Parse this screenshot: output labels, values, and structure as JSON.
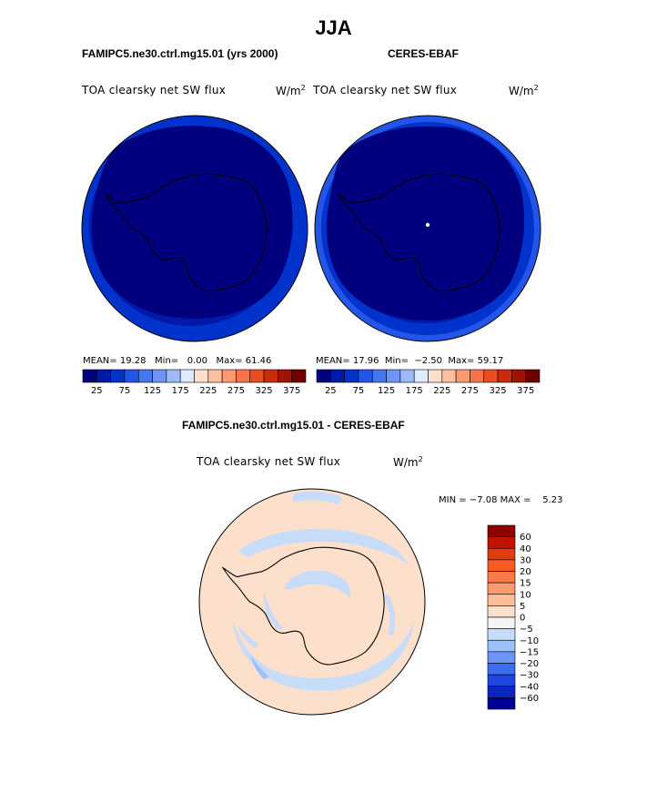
{
  "figure": {
    "season": "JJA",
    "top_left": {
      "case": "FAMIPC5.ne30.ctrl.mg15.01 (yrs 2000)",
      "variable": "TOA clearsky net SW flux",
      "units": "W/m",
      "units_exp": "2",
      "mean_label": "MEAN=",
      "mean": "19.28",
      "min_label": "Min=",
      "min": "0.00",
      "max_label": "Max=",
      "max": "61.46"
    },
    "top_right": {
      "case": "CERES-EBAF",
      "variable": "TOA clearsky net SW flux",
      "units": "W/m",
      "units_exp": "2",
      "mean_label": "MEAN=",
      "mean": "17.96",
      "min_label": "Min=",
      "min": "−2.50",
      "max_label": "Max=",
      "max": "59.17"
    },
    "bottom": {
      "case": "FAMIPC5.ne30.ctrl.mg15.01 - CERES-EBAF",
      "variable": "TOA clearsky net SW flux",
      "units": "W/m",
      "units_exp": "2",
      "min_label": "MIN =",
      "min": "−7.08",
      "max_label": "MAX =",
      "max": "5.23"
    }
  },
  "chart_data": [
    {
      "type": "heatmap",
      "projection": "south-polar-stereographic",
      "title": "FAMIPC5.ne30.ctrl.mg15.01 (yrs 2000)",
      "colorbar": {
        "orientation": "horizontal",
        "levels": [
          25,
          50,
          75,
          100,
          125,
          150,
          175,
          200,
          225,
          250,
          275,
          300,
          325,
          350,
          375
        ],
        "tick_labels": [
          "25",
          "75",
          "125",
          "175",
          "225",
          "275",
          "325",
          "375"
        ],
        "colors": [
          "#00007f",
          "#0019a8",
          "#0033cc",
          "#2255e8",
          "#4477f0",
          "#6c95f4",
          "#9cbaf8",
          "#ddeaff",
          "#fde0cc",
          "#fcc0a0",
          "#fa9a70",
          "#f57548",
          "#ea4d22",
          "#cc2a08",
          "#a01204",
          "#6e0000"
        ]
      },
      "mean": 19.28,
      "min": 0.0,
      "max": 61.46
    },
    {
      "type": "heatmap",
      "projection": "south-polar-stereographic",
      "title": "CERES-EBAF",
      "colorbar": {
        "orientation": "horizontal",
        "levels": [
          25,
          50,
          75,
          100,
          125,
          150,
          175,
          200,
          225,
          250,
          275,
          300,
          325,
          350,
          375
        ],
        "tick_labels": [
          "25",
          "75",
          "125",
          "175",
          "225",
          "275",
          "325",
          "375"
        ],
        "colors": [
          "#00007f",
          "#0019a8",
          "#0033cc",
          "#2255e8",
          "#4477f0",
          "#6c95f4",
          "#9cbaf8",
          "#ddeaff",
          "#fde0cc",
          "#fcc0a0",
          "#fa9a70",
          "#f57548",
          "#ea4d22",
          "#cc2a08",
          "#a01204",
          "#6e0000"
        ]
      },
      "mean": 17.96,
      "min": -2.5,
      "max": 59.17
    },
    {
      "type": "heatmap",
      "projection": "south-polar-stereographic",
      "title": "FAMIPC5.ne30.ctrl.mg15.01 - CERES-EBAF",
      "colorbar": {
        "orientation": "vertical",
        "tick_labels": [
          "60",
          "40",
          "30",
          "20",
          "15",
          "10",
          "5",
          "0",
          "−5",
          "−10",
          "−15",
          "−20",
          "−30",
          "−40",
          "−60"
        ],
        "colors": [
          "#8c0000",
          "#c01400",
          "#e43a10",
          "#f85a22",
          "#fa7a48",
          "#fc9a70",
          "#fdbd98",
          "#fde0cc",
          "#f4f4f4",
          "#c6dcf8",
          "#9cc0f8",
          "#6c95f4",
          "#3c6ef0",
          "#1c48e0",
          "#0a25c0",
          "#000096"
        ]
      },
      "min": -7.08,
      "max": 5.23
    }
  ]
}
